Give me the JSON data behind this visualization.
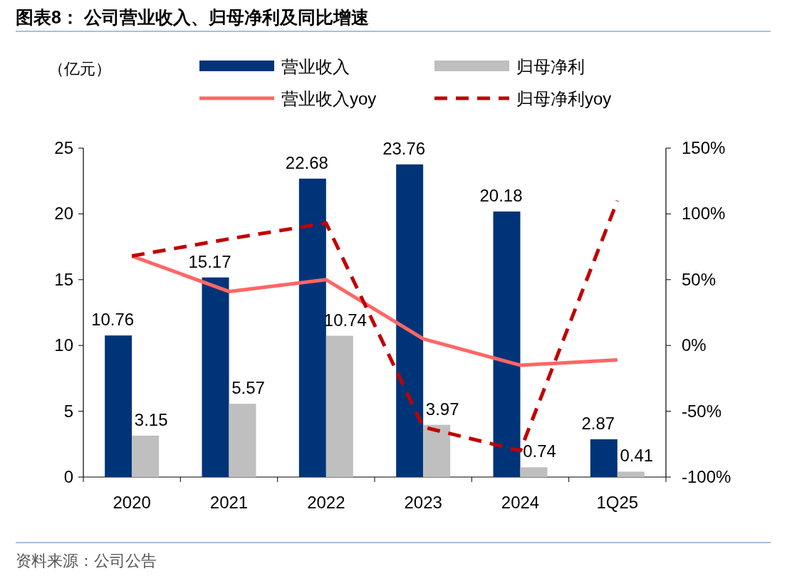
{
  "chart_data": {
    "type": "bar",
    "title": "图表8：  公司营业收入、归母净利及同比增速",
    "ylabel": "（亿元）",
    "categories": [
      "2020",
      "2021",
      "2022",
      "2023",
      "2024",
      "1Q25"
    ],
    "series": [
      {
        "name": "营业收入",
        "color": "#003478",
        "values": [
          10.76,
          15.17,
          22.68,
          23.76,
          20.18,
          2.87
        ],
        "value_labels": [
          "10.76",
          "15.17",
          "22.68",
          "23.76",
          "20.18",
          "2.87"
        ]
      },
      {
        "name": "归母净利",
        "color": "#bfbfbf",
        "values": [
          3.15,
          5.57,
          10.74,
          3.97,
          0.74,
          0.41
        ],
        "value_labels": [
          "3.15",
          "5.57",
          "10.74",
          "3.97",
          "0.74",
          "0.41"
        ]
      },
      {
        "name": "营业收入yoy",
        "type": "line",
        "axis": "y2",
        "color": "#ff6666",
        "line_style": "solid",
        "values": [
          68,
          41,
          50,
          5,
          -15,
          -11
        ]
      },
      {
        "name": "归母净利yoy",
        "type": "line",
        "axis": "y2",
        "color": "#c00000",
        "line_style": "dashed",
        "values": [
          68,
          81,
          93,
          -62,
          -80,
          110
        ]
      }
    ],
    "ylim": [
      0,
      25
    ],
    "yticks": [
      0,
      5,
      10,
      15,
      20,
      25
    ],
    "y2lim": [
      -100,
      150
    ],
    "y2ticks": [
      {
        "value": -100,
        "label": "-100%"
      },
      {
        "value": -50,
        "label": "-50%"
      },
      {
        "value": 0,
        "label": "0%"
      },
      {
        "value": 50,
        "label": "50%"
      },
      {
        "value": 100,
        "label": "100%"
      },
      {
        "value": 150,
        "label": "150%"
      }
    ],
    "legend": "top",
    "annotations": [
      "资料来源：公司公告"
    ]
  }
}
